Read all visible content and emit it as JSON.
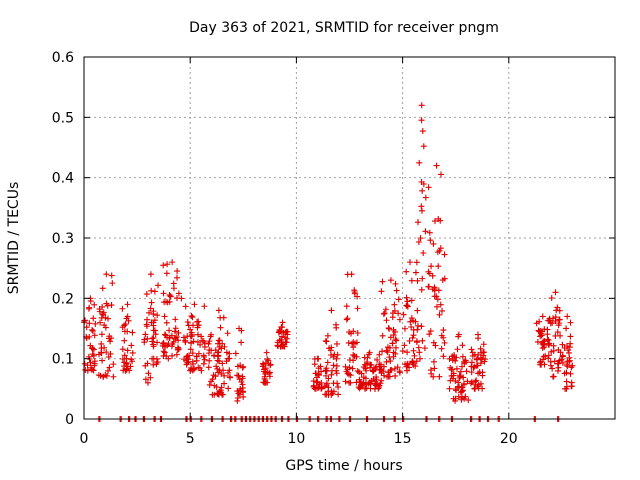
{
  "chart_data": {
    "type": "scatter",
    "title": "Day 363 of 2021, SRMTID for receiver pngm",
    "xlabel": "GPS time / hours",
    "ylabel": "SRMTID / TECUs",
    "xlim": [
      0,
      25
    ],
    "ylim": [
      0,
      0.6
    ],
    "x_ticks": [
      0,
      5,
      10,
      15,
      20
    ],
    "y_ticks": [
      0,
      0.1,
      0.2,
      0.3,
      0.4,
      0.5,
      0.6
    ],
    "x_tick_labels": [
      "0",
      "5",
      "10",
      "15",
      "20"
    ],
    "y_tick_labels": [
      "0",
      "0.1",
      "0.2",
      "0.3",
      "0.4",
      "0.5",
      "0.6"
    ],
    "grid": true,
    "marker": "+",
    "marker_color": "#e00000",
    "series": [
      {
        "name": "SRMTID",
        "clusters": [
          {
            "x": [
              0.0,
              0.6
            ],
            "y": [
              0.08,
              0.2
            ]
          },
          {
            "x": [
              0.7,
              1.4
            ],
            "y": [
              0.07,
              0.24
            ]
          },
          {
            "x": [
              1.8,
              2.3
            ],
            "y": [
              0.08,
              0.19
            ]
          },
          {
            "x": [
              2.8,
              3.5
            ],
            "y": [
              0.06,
              0.24
            ]
          },
          {
            "x": [
              3.7,
              4.6
            ],
            "y": [
              0.1,
              0.26
            ]
          },
          {
            "x": [
              4.7,
              5.7
            ],
            "y": [
              0.08,
              0.19
            ]
          },
          {
            "x": [
              5.8,
              6.9
            ],
            "y": [
              0.04,
              0.18
            ]
          },
          {
            "x": [
              7.1,
              7.5
            ],
            "y": [
              0.03,
              0.15
            ]
          },
          {
            "x": [
              8.4,
              8.8
            ],
            "y": [
              0.06,
              0.11
            ]
          },
          {
            "x": [
              9.1,
              9.6
            ],
            "y": [
              0.12,
              0.16
            ]
          },
          {
            "x": [
              10.8,
              11.2
            ],
            "y": [
              0.05,
              0.1
            ]
          },
          {
            "x": [
              11.3,
              12.0
            ],
            "y": [
              0.04,
              0.18
            ]
          },
          {
            "x": [
              12.3,
              12.9
            ],
            "y": [
              0.06,
              0.24
            ]
          },
          {
            "x": [
              12.9,
              14.0
            ],
            "y": [
              0.05,
              0.11
            ]
          },
          {
            "x": [
              14.0,
              14.9
            ],
            "y": [
              0.07,
              0.23
            ]
          },
          {
            "x": [
              15.0,
              15.7
            ],
            "y": [
              0.08,
              0.26
            ]
          },
          {
            "x": [
              15.7,
              16.1
            ],
            "y": [
              0.1,
              0.52
            ]
          },
          {
            "x": [
              16.2,
              17.0
            ],
            "y": [
              0.07,
              0.42
            ]
          },
          {
            "x": [
              17.2,
              18.1
            ],
            "y": [
              0.03,
              0.14
            ]
          },
          {
            "x": [
              18.2,
              18.9
            ],
            "y": [
              0.05,
              0.14
            ]
          },
          {
            "x": [
              21.3,
              21.9
            ],
            "y": [
              0.09,
              0.17
            ]
          },
          {
            "x": [
              21.9,
              22.5
            ],
            "y": [
              0.07,
              0.21
            ]
          },
          {
            "x": [
              22.5,
              23.0
            ],
            "y": [
              0.05,
              0.17
            ]
          }
        ],
        "zero_values_at_x": [
          0.7,
          1.7,
          2.1,
          2.4,
          2.8,
          3.3,
          3.6,
          4.8,
          5.0,
          5.5,
          6.0,
          6.5,
          6.9,
          7.1,
          7.4,
          7.6,
          7.8,
          8.0,
          8.2,
          8.4,
          8.6,
          8.8,
          9.0,
          9.3,
          9.6,
          10.0,
          10.6,
          11.0,
          11.4,
          11.6,
          12.0,
          12.5,
          13.3,
          14.1,
          14.6,
          15.0,
          16.1,
          16.7,
          17.3,
          18.2,
          18.6,
          19.0,
          19.5,
          21.2,
          22.3
        ]
      }
    ]
  }
}
